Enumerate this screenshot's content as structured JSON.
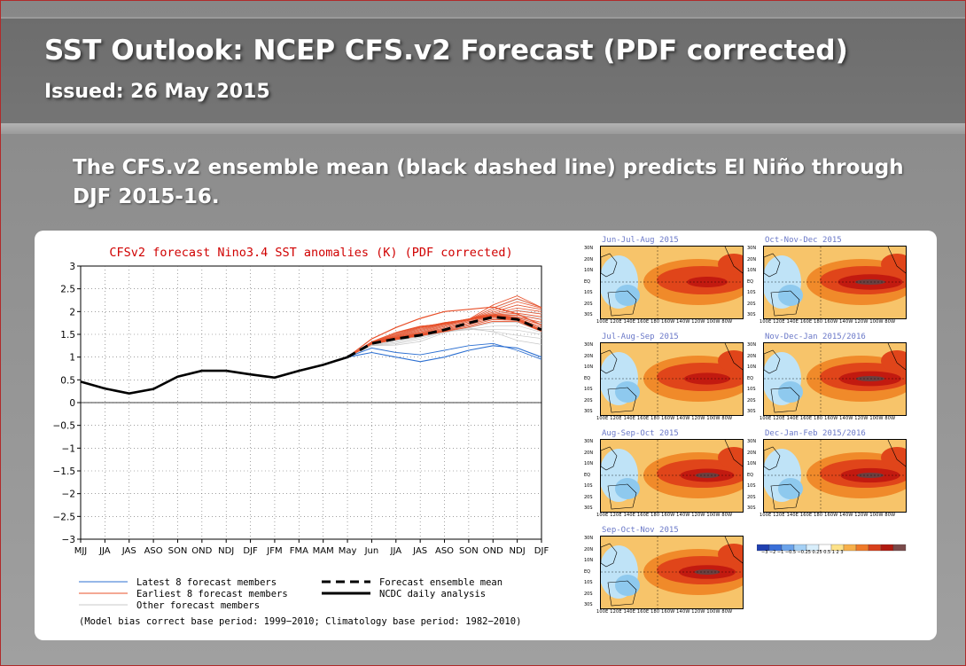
{
  "header": {
    "title": "SST Outlook: NCEP CFS.v2 Forecast (PDF corrected)",
    "issued": "Issued:  26 May 2015"
  },
  "subtitle": "The CFS.v2 ensemble mean (black dashed line) predicts El Niño through DJF 2015-16.",
  "colors": {
    "title_red": "#d00000",
    "latest_members": "#2c6fd1",
    "earliest_members": "#e8502a",
    "other_members": "#c8c8c8",
    "axis": "#000000"
  },
  "chart_data": {
    "type": "line",
    "title": "CFSv2 forecast Nino3.4 SST anomalies (K) (PDF corrected)",
    "categories": [
      "MJJ",
      "JJA",
      "JAS",
      "ASO",
      "SON",
      "OND",
      "NDJ",
      "DJF",
      "JFM",
      "FMA",
      "MAM",
      "May",
      "Jun",
      "JJA",
      "JAS",
      "ASO",
      "SON",
      "OND",
      "NDJ",
      "DJF"
    ],
    "ylim": [
      -3,
      3
    ],
    "yticks": [
      3,
      2.5,
      2,
      1.5,
      1,
      0.5,
      0,
      -0.5,
      -1,
      -1.5,
      -2,
      -2.5,
      -3
    ],
    "ytick_labels": [
      "3",
      "2.5",
      "2",
      "1.5",
      "1",
      "0.5",
      "0",
      "−0.5",
      "−1",
      "−1.5",
      "−2",
      "−2.5",
      "−3"
    ],
    "grid": "dotted",
    "series": [
      {
        "name": "NCDC daily analysis",
        "style": "solid-black",
        "values": [
          0.46,
          0.31,
          0.2,
          0.3,
          0.57,
          0.7,
          0.7,
          0.62,
          0.55,
          0.7,
          0.83,
          1.0,
          null,
          null,
          null,
          null,
          null,
          null,
          null,
          null
        ]
      },
      {
        "name": "Forecast ensemble mean",
        "style": "dashed-black",
        "values": [
          null,
          null,
          null,
          null,
          null,
          null,
          null,
          null,
          null,
          null,
          null,
          1.0,
          1.3,
          1.4,
          1.48,
          1.6,
          1.75,
          1.88,
          1.83,
          1.6
        ]
      },
      {
        "name": "Latest 8 forecast members",
        "style": "blue",
        "values": [
          null,
          null,
          null,
          null,
          null,
          null,
          null,
          null,
          null,
          null,
          null,
          1.0,
          1.1,
          1.0,
          0.9,
          1.0,
          1.15,
          1.25,
          1.2,
          1.0
        ]
      },
      {
        "name": "Earliest 8 forecast members",
        "style": "red",
        "values": [
          null,
          null,
          null,
          null,
          null,
          null,
          null,
          null,
          null,
          null,
          null,
          1.0,
          1.4,
          1.65,
          1.85,
          2.0,
          2.05,
          2.1,
          1.95,
          1.7
        ]
      }
    ],
    "legend": [
      {
        "label": "Latest 8 forecast members",
        "style": "blue"
      },
      {
        "label": "Earliest 8 forecast members",
        "style": "red"
      },
      {
        "label": "Other forecast members",
        "style": "grey"
      },
      {
        "label": "Forecast ensemble mean",
        "style": "dashed-black"
      },
      {
        "label": "NCDC daily analysis",
        "style": "solid-black"
      }
    ],
    "footnote": "(Model bias correct base period: 1999−2010; Climatology base period: 1982−2010)"
  },
  "maps": {
    "panels": [
      {
        "label": "Jun-Jul-Aug 2015",
        "intensity": 0.5
      },
      {
        "label": "Oct-Nov-Dec 2015",
        "intensity": 0.95
      },
      {
        "label": "Jul-Aug-Sep 2015",
        "intensity": 0.6
      },
      {
        "label": "Nov-Dec-Jan 2015/2016",
        "intensity": 0.9
      },
      {
        "label": "Aug-Sep-Oct 2015",
        "intensity": 0.75
      },
      {
        "label": "Dec-Jan-Feb 2015/2016",
        "intensity": 0.85
      },
      {
        "label": "Sep-Oct-Nov 2015",
        "intensity": 0.8
      }
    ],
    "lon_labels": "100E 120E 140E 160E 180 160W 140W 120W 100W 80W",
    "lat_labels": [
      "30N",
      "20N",
      "10N",
      "EQ",
      "10S",
      "20S",
      "30S"
    ],
    "colorbar_labels": [
      "−3",
      "−2",
      "−1",
      "−0.5",
      "−0.25",
      "0.25",
      "0.5",
      "1",
      "2",
      "3"
    ]
  }
}
